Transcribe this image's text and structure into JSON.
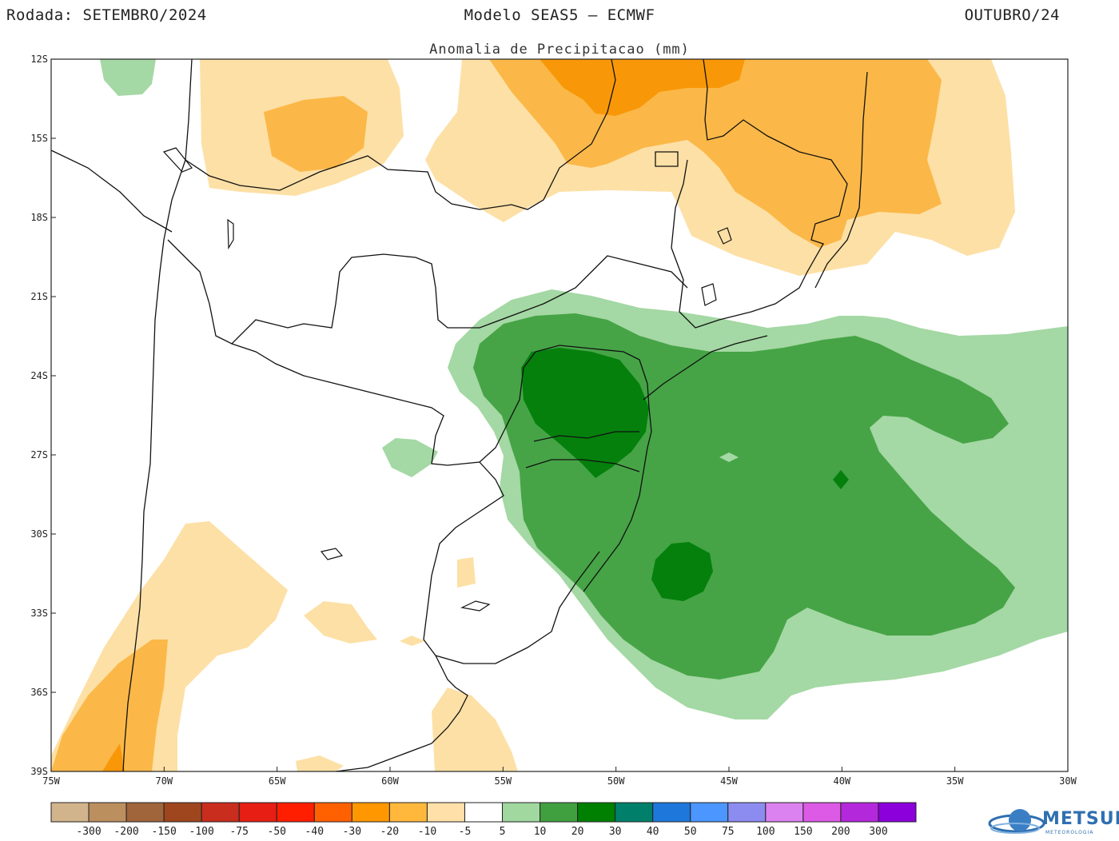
{
  "header": {
    "left": "Rodada: SETEMBRO/2024",
    "center": "Modelo SEAS5 — ECMWF",
    "right": "OUTUBRO/24",
    "subtitle": "Anomalia de Precipitacao (mm)"
  },
  "axes": {
    "lat_labels": [
      "12S",
      "15S",
      "18S",
      "21S",
      "24S",
      "27S",
      "30S",
      "33S",
      "36S",
      "39S"
    ],
    "lon_labels": [
      "75W",
      "70W",
      "65W",
      "60W",
      "55W",
      "50W",
      "45W",
      "40W",
      "35W",
      "30W"
    ]
  },
  "colorbar": {
    "colors": [
      "#d2b48c",
      "#bc8f5f",
      "#a0653a",
      "#a0461e",
      "#c82d1e",
      "#e61e14",
      "#ff1e00",
      "#ff6000",
      "#ff9800",
      "#ffb83c",
      "#ffe0a8",
      "#ffffff",
      "#a0d8a0",
      "#40a040",
      "#008000",
      "#00806a",
      "#1e78dc",
      "#4b96ff",
      "#8c8cf0",
      "#dc82f0",
      "#dc5ae6",
      "#b428dc",
      "#8c00dc"
    ],
    "labels": [
      "-300",
      "-200",
      "-150",
      "-100",
      "-75",
      "-50",
      "-40",
      "-30",
      "-20",
      "-10",
      "-5",
      "5",
      "10",
      "20",
      "30",
      "40",
      "50",
      "75",
      "100",
      "150",
      "200",
      "300"
    ]
  },
  "legend_colors": {
    "dry_light": "#fde0a6",
    "dry_medium": "#fbb848",
    "dry_strong": "#f89808",
    "wet_light": "#a4d8a4",
    "wet_medium": "#46a446",
    "wet_strong": "#05800c"
  },
  "logo": {
    "name": "METSUL",
    "sub": "METEOROLOGIA",
    "icon": "globe-swirl-icon"
  }
}
